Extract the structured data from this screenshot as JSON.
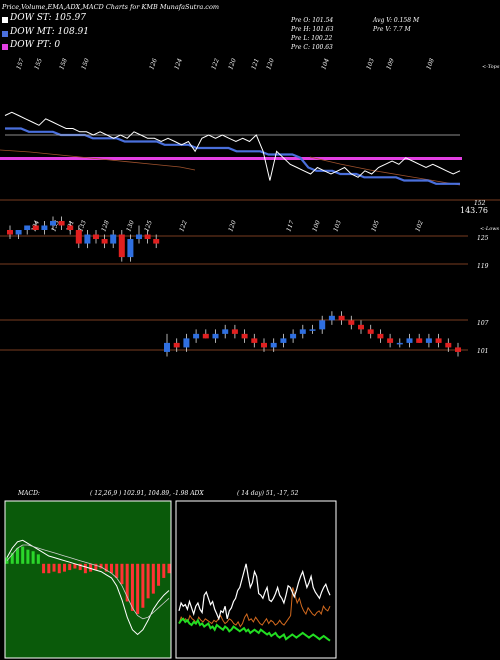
{
  "header": {
    "title": "Price,Volume,EMA,ADX,MACD Charts for KMB MunafaSutra.com"
  },
  "legend": [
    {
      "label": "DOW ST: 105.97",
      "color": "#ffffff"
    },
    {
      "label": "DOW MT: 108.91",
      "color": "#4a6fdc"
    },
    {
      "label": "DOW PT: 0",
      "color": "#e23fe2"
    }
  ],
  "quote": {
    "o": "Pre   O: 101.54",
    "h": "Pre   H: 101.63",
    "l": "Pre   L: 100.22",
    "c": "Pre   C: 100.63",
    "avg": "Avg V: 0.158 M",
    "v": "Pre   V: 7.7 M"
  },
  "top_panel": {
    "tag": "<-Tops",
    "last_price": "143.76",
    "right_label": "152",
    "tops": [
      "157",
      "155",
      "158",
      "150",
      "126",
      "124",
      "122",
      "120",
      "121",
      "120",
      "104",
      "103",
      "109",
      "108"
    ]
  },
  "candle_panel": {
    "tag": "<-Lows",
    "lows": [
      "134",
      "133",
      "131",
      "133",
      "128",
      "130",
      "125",
      "122",
      "120",
      "117",
      "100",
      "103",
      "105",
      "102"
    ],
    "levels": [
      "125",
      "119",
      "107",
      "101"
    ]
  },
  "macd_label": "MACD:",
  "macd_params": "( 12,26,9 ) 102.91, 104.89, -1.98  ADX",
  "adx_params": "( 14  day) 51, -17,  52",
  "chart_data": [
    {
      "type": "line",
      "panel": "price-ema",
      "series": [
        {
          "values": [
            151,
            152,
            151,
            150,
            149,
            148,
            150,
            149,
            148,
            147,
            147,
            146,
            146,
            145,
            146,
            145,
            144,
            145,
            144,
            146,
            145,
            144,
            144,
            143,
            144,
            143,
            142,
            143,
            140,
            144,
            145,
            144,
            145,
            144,
            143,
            144,
            143,
            145,
            140,
            131,
            140,
            138,
            136,
            135,
            134,
            133,
            135,
            134,
            133,
            134,
            135,
            133,
            132,
            134,
            133,
            135,
            136,
            137,
            136,
            138,
            137,
            136,
            135,
            136,
            135,
            134,
            133,
            134
          ]
        },
        {
          "values": [
            147,
            147,
            147,
            146,
            146,
            146,
            146,
            145,
            145,
            145,
            145,
            144,
            144,
            144,
            144,
            143,
            143,
            143,
            143,
            143,
            142,
            142,
            142,
            142,
            141,
            141,
            141,
            141,
            141,
            140,
            140,
            140,
            140,
            139,
            139,
            139,
            139,
            138,
            135,
            134,
            134,
            134,
            133,
            133,
            133,
            132,
            132,
            132,
            132,
            132,
            131,
            131,
            131,
            131,
            130,
            130,
            130,
            130
          ]
        },
        {
          "values": [
            145,
            145,
            145,
            145,
            145,
            145,
            145,
            145,
            145,
            145,
            145,
            145,
            145,
            145,
            145,
            145,
            145,
            145,
            145,
            145,
            145,
            145,
            145,
            145,
            145,
            145,
            145,
            145,
            145,
            145,
            145,
            145,
            145,
            145,
            145,
            145,
            145,
            145,
            145,
            145,
            145,
            145,
            145,
            145,
            145,
            145,
            145,
            145,
            145,
            145,
            145,
            145,
            145,
            145,
            145,
            145,
            145,
            145
          ]
        }
      ],
      "ylim": [
        125,
        165
      ]
    },
    {
      "type": "candlestick",
      "panel": "price",
      "candles": [
        [
          128,
          129,
          126,
          127
        ],
        [
          127,
          128,
          126,
          128
        ],
        [
          128,
          129,
          127,
          129
        ],
        [
          129,
          130,
          128,
          128
        ],
        [
          128,
          130,
          127,
          129
        ],
        [
          129,
          131,
          128,
          130
        ],
        [
          130,
          131,
          128,
          129
        ],
        [
          129,
          130,
          127,
          128
        ],
        [
          128,
          129,
          124,
          125
        ],
        [
          125,
          128,
          124,
          127
        ],
        [
          127,
          128,
          125,
          126
        ],
        [
          126,
          127,
          124,
          125
        ],
        [
          125,
          128,
          124,
          127
        ],
        [
          127,
          128,
          121,
          122
        ],
        [
          122,
          127,
          121,
          126
        ],
        [
          126,
          129,
          125,
          127
        ],
        [
          127,
          128,
          125,
          126
        ],
        [
          126,
          127,
          124,
          125
        ],
        [
          101,
          105,
          100,
          103
        ],
        [
          103,
          104,
          101,
          102
        ],
        [
          102,
          105,
          101,
          104
        ],
        [
          104,
          106,
          103,
          105
        ],
        [
          105,
          106,
          104,
          104
        ],
        [
          104,
          106,
          103,
          105
        ],
        [
          105,
          107,
          104,
          106
        ],
        [
          106,
          107,
          104,
          105
        ],
        [
          105,
          106,
          103,
          104
        ],
        [
          104,
          105,
          102,
          103
        ],
        [
          103,
          104,
          101,
          102
        ],
        [
          102,
          104,
          101,
          103
        ],
        [
          103,
          105,
          102,
          104
        ],
        [
          104,
          106,
          103,
          105
        ],
        [
          105,
          107,
          104,
          106
        ],
        [
          106,
          107,
          105,
          106
        ],
        [
          106,
          109,
          105,
          108
        ],
        [
          108,
          110,
          107,
          109
        ],
        [
          109,
          110,
          107,
          108
        ],
        [
          108,
          109,
          106,
          107
        ],
        [
          107,
          108,
          105,
          106
        ],
        [
          106,
          107,
          104,
          105
        ],
        [
          105,
          106,
          103,
          104
        ],
        [
          104,
          105,
          102,
          103
        ],
        [
          103,
          104,
          102,
          103
        ],
        [
          103,
          105,
          102,
          104
        ],
        [
          104,
          105,
          103,
          103
        ],
        [
          103,
          105,
          102,
          104
        ],
        [
          104,
          105,
          102,
          103
        ],
        [
          103,
          104,
          101,
          102
        ],
        [
          102,
          103,
          100,
          101
        ]
      ],
      "ylim": [
        97,
        128
      ]
    },
    {
      "type": "bar",
      "panel": "macd-histogram",
      "values": [
        0.4,
        0.7,
        1.0,
        1.1,
        0.9,
        0.8,
        0.6,
        -0.6,
        -0.6,
        -0.5,
        -0.6,
        -0.5,
        -0.4,
        -0.3,
        -0.4,
        -0.6,
        -0.5,
        -0.4,
        -0.3,
        -0.5,
        -0.6,
        -0.9,
        -1.3,
        -2.4,
        -3.0,
        -3.2,
        -2.8,
        -2.2,
        -1.9,
        -1.4,
        -0.9,
        -0.6
      ],
      "series": [
        {
          "values": [
            0.4,
            1.0,
            1.4,
            1.5,
            1.3,
            1.1,
            0.9,
            0.7,
            0.5,
            0.4,
            0.3,
            0.2,
            0.1,
            0.0,
            -0.1,
            -0.2,
            -0.3,
            -0.4,
            -0.5,
            -0.7,
            -0.9,
            -1.4,
            -2.3,
            -3.4,
            -4.2,
            -4.5,
            -4.2,
            -3.6,
            -2.9,
            -2.4,
            -2.0,
            -1.7
          ]
        },
        {
          "values": [
            0.2,
            0.6,
            1.0,
            1.2,
            1.2,
            1.1,
            1.0,
            0.9,
            0.8,
            0.7,
            0.6,
            0.5,
            0.4,
            0.3,
            0.2,
            0.1,
            0.0,
            -0.1,
            -0.2,
            -0.4,
            -0.6,
            -0.9,
            -1.4,
            -2.1,
            -2.8,
            -3.3,
            -3.5,
            -3.4,
            -3.1,
            -2.8,
            -2.5,
            -2.2
          ]
        }
      ],
      "ylim": [
        -6,
        4
      ]
    },
    {
      "type": "line",
      "panel": "adx",
      "series": [
        {
          "values": [
            30,
            35,
            33,
            34,
            31,
            36,
            32,
            28,
            33,
            35,
            31,
            29,
            40,
            42,
            38,
            34,
            36,
            31,
            28,
            25,
            30,
            29,
            33,
            25,
            30,
            32,
            36,
            38,
            43,
            45,
            50,
            55,
            60,
            52,
            45,
            48,
            55,
            52,
            41,
            40,
            38,
            42,
            45,
            37,
            36,
            38,
            41,
            45,
            40,
            38,
            35,
            40,
            46,
            45,
            42,
            39,
            43,
            48,
            52,
            55,
            50,
            45,
            48,
            52,
            45,
            42,
            40,
            38,
            42,
            45,
            47,
            43,
            40
          ]
        },
        {
          "values": [
            22,
            26,
            24,
            25,
            23,
            27,
            25,
            24,
            22,
            26,
            24,
            23,
            25,
            24,
            23,
            22,
            24,
            23,
            25,
            27,
            24,
            22,
            23,
            25,
            24,
            22,
            21,
            23,
            20,
            22,
            26,
            28,
            24,
            25,
            23,
            26,
            24,
            22,
            21,
            23,
            25,
            22,
            24,
            23,
            21,
            22,
            24,
            22,
            21,
            23,
            25,
            27,
            45,
            40,
            35,
            38,
            33,
            30,
            28,
            32,
            30,
            28,
            27,
            29,
            30,
            28,
            33,
            31,
            30,
            33
          ]
        },
        {
          "values": [
            22,
            24,
            25,
            23,
            24,
            22,
            21,
            23,
            22,
            24,
            21,
            22,
            20,
            21,
            22,
            19,
            20,
            18,
            21,
            20,
            19,
            18,
            20,
            19,
            17,
            18,
            20,
            19,
            18,
            17,
            18,
            19,
            17,
            18,
            16,
            17,
            18,
            17,
            16,
            18,
            17,
            16,
            15,
            16,
            14,
            15,
            16,
            14,
            13,
            14,
            15,
            12,
            13,
            14,
            15,
            14,
            13,
            14,
            15,
            16,
            15,
            14,
            13,
            14,
            15,
            14,
            13,
            12,
            13,
            14,
            13,
            12,
            11
          ]
        }
      ],
      "ylim": [
        0,
        100
      ]
    }
  ]
}
